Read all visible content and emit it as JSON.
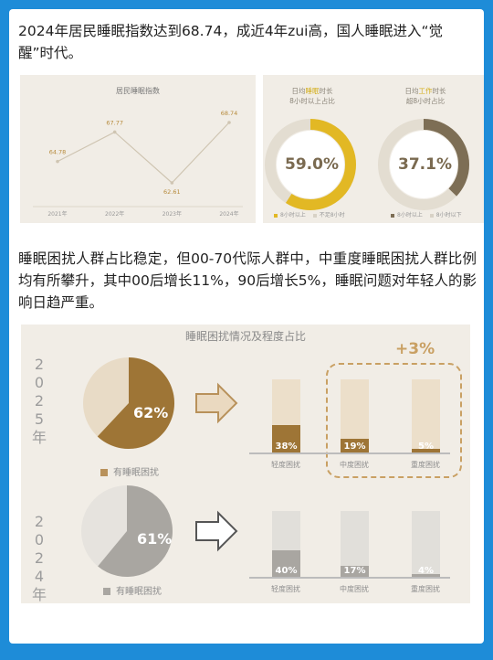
{
  "intro": "2024年居民睡眠指数达到68.74，成近4年zui高，国人睡眠进入“觉醒”时代。",
  "index_chart": {
    "title": "居民睡眠指数",
    "chart_data": {
      "type": "line",
      "title": "居民睡眠指数",
      "categories": [
        "2021年",
        "2022年",
        "2023年",
        "2024年"
      ],
      "values": [
        64.78,
        67.77,
        62.61,
        68.74
      ],
      "value_labels": [
        "64.78",
        "67.77",
        "62.61",
        "68.74"
      ]
    }
  },
  "donuts": [
    {
      "title_pre": "日均",
      "title_hl": "睡眠",
      "title_post": "时长",
      "title2": "8小时以上占比",
      "percent_label": "59.0%",
      "value": 0.59,
      "fill_color": "#e2b824",
      "legend": [
        "8小时以上",
        "不足8小时"
      ]
    },
    {
      "title_pre": "日均",
      "title_hl": "工作",
      "title_post": "时长",
      "title2": "超8小时占比",
      "percent_label": "37.1%",
      "value": 0.371,
      "fill_color": "#7d6e55",
      "legend": [
        "8小时以上",
        "8小时以下"
      ]
    }
  ],
  "para2": "睡眠困扰人群占比稳定，但00-70代际人群中，中重度睡眠困扰人群比例均有所攀升，其中00后增长11%，90后增长5%，睡眠问题对年轻人的影响日趋严重。",
  "trouble": {
    "title": "睡眠困扰情况及程度占比",
    "increase": "+3%",
    "rows": [
      {
        "year_chars": [
          "2",
          "0",
          "2",
          "5",
          "年"
        ],
        "pie_value": 0.62,
        "pie_label": "62%",
        "legend": "有睡眠困扰",
        "color": "#9e7536",
        "light": "#e8dbc6",
        "pale": "#ecdfca",
        "chart_data": {
          "type": "bar",
          "categories": [
            "轻度困扰",
            "中度困扰",
            "重度困扰"
          ],
          "values": [
            38,
            19,
            5
          ],
          "labels": [
            "38%",
            "19%",
            "5%"
          ]
        }
      },
      {
        "year_chars": [
          "2",
          "0",
          "2",
          "4",
          "年"
        ],
        "pie_value": 0.61,
        "pie_label": "61%",
        "legend": "有睡眠困扰",
        "color": "#a9a6a1",
        "light": "#e6e3de",
        "pale": "#e1dfda",
        "chart_data": {
          "type": "bar",
          "categories": [
            "轻度困扰",
            "中度困扰",
            "重度困扰"
          ],
          "values": [
            40,
            17,
            4
          ],
          "labels": [
            "40%",
            "17%",
            "4%"
          ]
        }
      }
    ]
  }
}
